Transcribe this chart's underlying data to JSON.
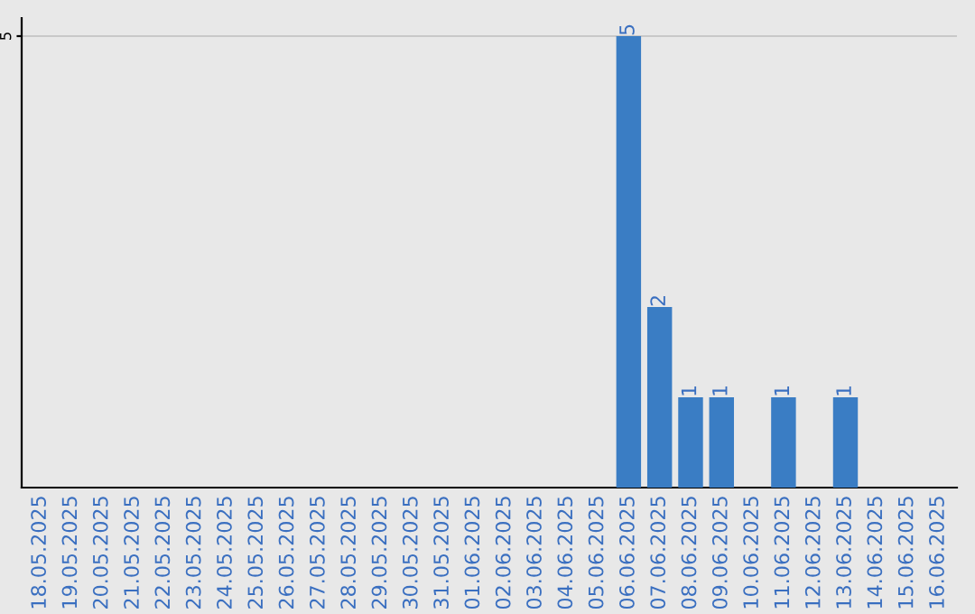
{
  "chart_data": {
    "type": "bar",
    "categories": [
      "18.05.2025",
      "19.05.2025",
      "20.05.2025",
      "21.05.2025",
      "22.05.2025",
      "23.05.2025",
      "24.05.2025",
      "25.05.2025",
      "26.05.2025",
      "27.05.2025",
      "28.05.2025",
      "29.05.2025",
      "30.05.2025",
      "31.05.2025",
      "01.06.2025",
      "02.06.2025",
      "03.06.2025",
      "04.06.2025",
      "05.06.2025",
      "06.06.2025",
      "07.06.2025",
      "08.06.2025",
      "09.06.2025",
      "10.06.2025",
      "11.06.2025",
      "12.06.2025",
      "13.06.2025",
      "14.06.2025",
      "15.06.2025",
      "16.06.2025"
    ],
    "values": [
      null,
      null,
      null,
      null,
      null,
      null,
      null,
      null,
      null,
      null,
      null,
      null,
      null,
      null,
      null,
      null,
      null,
      null,
      null,
      5,
      2,
      1,
      1,
      null,
      1,
      null,
      1,
      null,
      null,
      null
    ],
    "color": "#3a7dc4",
    "ylim": [
      0,
      5.2
    ],
    "yticks": [
      5
    ],
    "grid": "y",
    "data_labels": true
  }
}
